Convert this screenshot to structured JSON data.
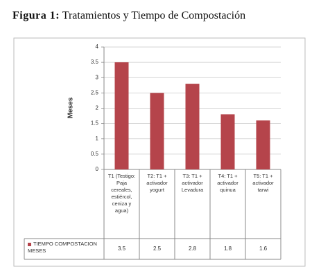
{
  "chart_data": {
    "type": "bar",
    "figure_label": "Figura 1:",
    "title": "Tratamientos y Tiempo de Compostación",
    "y_label": "Meses",
    "categories": [
      "T1 (Testigo: Paja cereales, estiércol, ceniza y agua)",
      "T2: T1 + activador yogurt",
      "T3: T1 + activador Levadura",
      "T4: T1 + activador quinua",
      "T5: T1 + activador tarwi"
    ],
    "series": [
      {
        "name": "TIEMPO COMPOSTACION MESES",
        "color": "#b5444b",
        "values": [
          3.5,
          2.5,
          2.8,
          1.8,
          1.6
        ]
      }
    ],
    "ylim": [
      0,
      4
    ],
    "yticks": [
      0,
      0.5,
      1,
      1.5,
      2,
      2.5,
      3,
      3.5,
      4
    ],
    "grid": true
  }
}
